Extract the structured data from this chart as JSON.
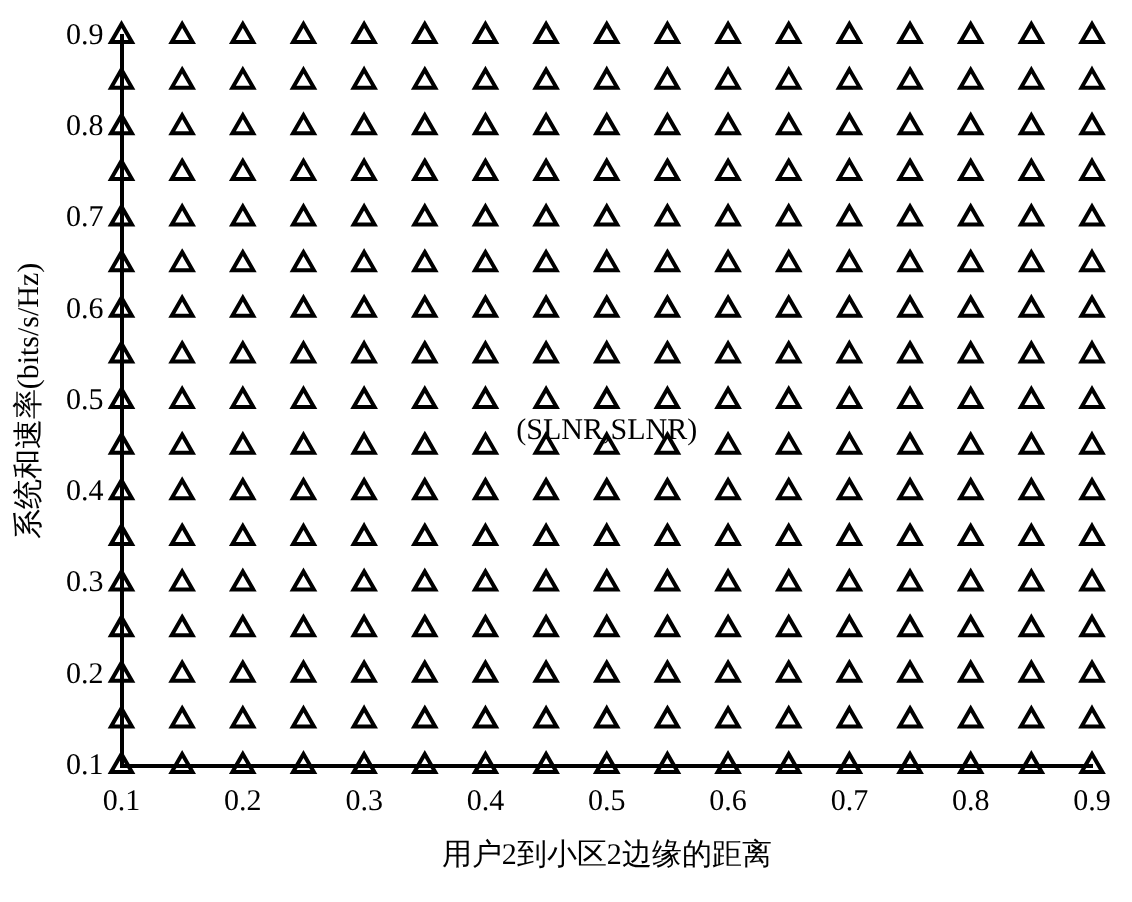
{
  "chart_data": {
    "type": "scatter",
    "xlabel": "用户2到小区2边缘的距离",
    "ylabel": "系统和速率(bits/s/Hz)",
    "marker": "triangle",
    "grid": false,
    "legend": false,
    "x": [
      0.1,
      0.15,
      0.2,
      0.25,
      0.3,
      0.35,
      0.4,
      0.45,
      0.5,
      0.55,
      0.6,
      0.65,
      0.7,
      0.75,
      0.8,
      0.85,
      0.9
    ],
    "xlim": [
      0.1,
      0.9
    ],
    "xticks": [
      0.1,
      0.2,
      0.3,
      0.4,
      0.5,
      0.6,
      0.7,
      0.8,
      0.9
    ],
    "ylim": [
      0.1,
      0.9
    ],
    "yticks": [
      0.1,
      0.2,
      0.3,
      0.4,
      0.5,
      0.6,
      0.7,
      0.8,
      0.9
    ],
    "annotations": [
      "(SLNR,SLNR)"
    ],
    "series": [
      {
        "color": "#000000",
        "values": [
          0.9,
          0.9,
          0.9,
          0.9,
          0.9,
          0.9,
          0.9,
          0.9,
          0.9,
          0.9,
          0.9,
          0.9,
          0.9,
          0.9,
          0.9,
          0.9,
          0.9
        ]
      },
      {
        "color": "#000000",
        "values": [
          0.85,
          0.85,
          0.85,
          0.85,
          0.85,
          0.85,
          0.85,
          0.85,
          0.85,
          0.85,
          0.85,
          0.85,
          0.85,
          0.85,
          0.85,
          0.85,
          0.85
        ]
      },
      {
        "color": "#000000",
        "values": [
          0.8,
          0.8,
          0.8,
          0.8,
          0.8,
          0.8,
          0.8,
          0.8,
          0.8,
          0.8,
          0.8,
          0.8,
          0.8,
          0.8,
          0.8,
          0.8,
          0.8
        ]
      },
      {
        "color": "#000000",
        "values": [
          0.75,
          0.75,
          0.75,
          0.75,
          0.75,
          0.75,
          0.75,
          0.75,
          0.75,
          0.75,
          0.75,
          0.75,
          0.75,
          0.75,
          0.75,
          0.75,
          0.75
        ]
      },
      {
        "color": "#000000",
        "values": [
          0.7,
          0.7,
          0.7,
          0.7,
          0.7,
          0.7,
          0.7,
          0.7,
          0.7,
          0.7,
          0.7,
          0.7,
          0.7,
          0.7,
          0.7,
          0.7,
          0.7
        ]
      },
      {
        "color": "#000000",
        "values": [
          0.65,
          0.65,
          0.65,
          0.65,
          0.65,
          0.65,
          0.65,
          0.65,
          0.65,
          0.65,
          0.65,
          0.65,
          0.65,
          0.65,
          0.65,
          0.65,
          0.65
        ]
      },
      {
        "color": "#000000",
        "values": [
          0.6,
          0.6,
          0.6,
          0.6,
          0.6,
          0.6,
          0.6,
          0.6,
          0.6,
          0.6,
          0.6,
          0.6,
          0.6,
          0.6,
          0.6,
          0.6,
          0.6
        ]
      },
      {
        "color": "#000000",
        "values": [
          0.55,
          0.55,
          0.55,
          0.55,
          0.55,
          0.55,
          0.55,
          0.55,
          0.55,
          0.55,
          0.55,
          0.55,
          0.55,
          0.55,
          0.55,
          0.55,
          0.55
        ]
      },
      {
        "color": "#000000",
        "values": [
          0.5,
          0.5,
          0.5,
          0.5,
          0.5,
          0.5,
          0.5,
          0.5,
          0.5,
          0.5,
          0.5,
          0.5,
          0.5,
          0.5,
          0.5,
          0.5,
          0.5
        ]
      },
      {
        "color": "#000000",
        "values": [
          0.45,
          0.45,
          0.45,
          0.45,
          0.45,
          0.45,
          0.45,
          0.45,
          0.45,
          0.45,
          0.45,
          0.45,
          0.45,
          0.45,
          0.45,
          0.45,
          0.45
        ]
      },
      {
        "color": "#000000",
        "values": [
          0.4,
          0.4,
          0.4,
          0.4,
          0.4,
          0.4,
          0.4,
          0.4,
          0.4,
          0.4,
          0.4,
          0.4,
          0.4,
          0.4,
          0.4,
          0.4,
          0.4
        ]
      },
      {
        "color": "#000000",
        "values": [
          0.35,
          0.35,
          0.35,
          0.35,
          0.35,
          0.35,
          0.35,
          0.35,
          0.35,
          0.35,
          0.35,
          0.35,
          0.35,
          0.35,
          0.35,
          0.35,
          0.35
        ]
      },
      {
        "color": "#000000",
        "values": [
          0.3,
          0.3,
          0.3,
          0.3,
          0.3,
          0.3,
          0.3,
          0.3,
          0.3,
          0.3,
          0.3,
          0.3,
          0.3,
          0.3,
          0.3,
          0.3,
          0.3
        ]
      },
      {
        "color": "#000000",
        "values": [
          0.25,
          0.25,
          0.25,
          0.25,
          0.25,
          0.25,
          0.25,
          0.25,
          0.25,
          0.25,
          0.25,
          0.25,
          0.25,
          0.25,
          0.25,
          0.25,
          0.25
        ]
      },
      {
        "color": "#000000",
        "values": [
          0.2,
          0.2,
          0.2,
          0.2,
          0.2,
          0.2,
          0.2,
          0.2,
          0.2,
          0.2,
          0.2,
          0.2,
          0.2,
          0.2,
          0.2,
          0.2,
          0.2
        ]
      },
      {
        "color": "#000000",
        "values": [
          0.15,
          0.15,
          0.15,
          0.15,
          0.15,
          0.15,
          0.15,
          0.15,
          0.15,
          0.15,
          0.15,
          0.15,
          0.15,
          0.15,
          0.15,
          0.15,
          0.15
        ]
      },
      {
        "color": "#000000",
        "values": [
          0.1,
          0.1,
          0.1,
          0.1,
          0.1,
          0.1,
          0.1,
          0.1,
          0.1,
          0.1,
          0.1,
          0.1,
          0.1,
          0.1,
          0.1,
          0.1,
          0.1
        ]
      }
    ]
  }
}
